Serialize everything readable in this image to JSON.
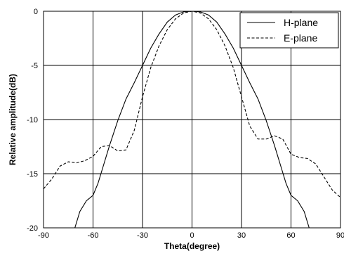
{
  "chart_data": {
    "type": "line",
    "title": "",
    "xlabel": "Theta(degree)",
    "ylabel": "Relative amplitude(dB)",
    "xlim": [
      -90,
      90
    ],
    "ylim": [
      -20,
      0
    ],
    "xticks": [
      -90,
      -60,
      -30,
      0,
      30,
      60,
      90
    ],
    "yticks": [
      0,
      -5,
      -10,
      -15,
      -20
    ],
    "xtick_labels": [
      "-90",
      "-60",
      "-30",
      "0",
      "30",
      "60",
      "90"
    ],
    "ytick_labels": [
      "0",
      "-5",
      "-10",
      "-15",
      "-20"
    ],
    "grid": true,
    "legend_position": "top-right",
    "series": [
      {
        "name": "H-plane",
        "style": "solid",
        "color": "#000000",
        "x": [
          -71,
          -68,
          -64,
          -60,
          -57,
          -54,
          -50,
          -45,
          -40,
          -35,
          -30,
          -25,
          -20,
          -15,
          -10,
          -5,
          0,
          5,
          10,
          15,
          20,
          25,
          30,
          35,
          40,
          45,
          50,
          54,
          57,
          60,
          64,
          68,
          71
        ],
        "y": [
          -20,
          -18.5,
          -17.5,
          -17,
          -15.9,
          -14.4,
          -12.4,
          -10.1,
          -8.1,
          -6.6,
          -5.0,
          -3.4,
          -2.1,
          -1.0,
          -0.35,
          -0.05,
          0,
          -0.05,
          -0.35,
          -1.0,
          -2.1,
          -3.4,
          -5.0,
          -6.6,
          -8.1,
          -10.1,
          -12.4,
          -14.4,
          -15.9,
          -17,
          -17.5,
          -18.5,
          -20
        ]
      },
      {
        "name": "E-plane",
        "style": "dashed",
        "color": "#000000",
        "x": [
          -90,
          -85,
          -80,
          -75,
          -70,
          -65,
          -60,
          -55,
          -50,
          -45,
          -40,
          -35,
          -30,
          -25,
          -20,
          -15,
          -10,
          -5,
          0,
          5,
          10,
          15,
          20,
          25,
          30,
          35,
          40,
          45,
          50,
          55,
          60,
          65,
          70,
          75,
          80,
          85,
          90
        ],
        "y": [
          -16.4,
          -15.5,
          -14.3,
          -13.9,
          -14.0,
          -13.8,
          -13.4,
          -12.5,
          -12.4,
          -12.9,
          -12.8,
          -11.0,
          -7.9,
          -5.2,
          -3.2,
          -1.7,
          -0.7,
          -0.15,
          0,
          -0.15,
          -0.7,
          -1.7,
          -3.2,
          -5.2,
          -7.9,
          -10.6,
          -11.8,
          -11.8,
          -11.5,
          -11.8,
          -13.2,
          -13.5,
          -13.6,
          -14.1,
          -15.3,
          -16.5,
          -17.2
        ]
      }
    ]
  }
}
